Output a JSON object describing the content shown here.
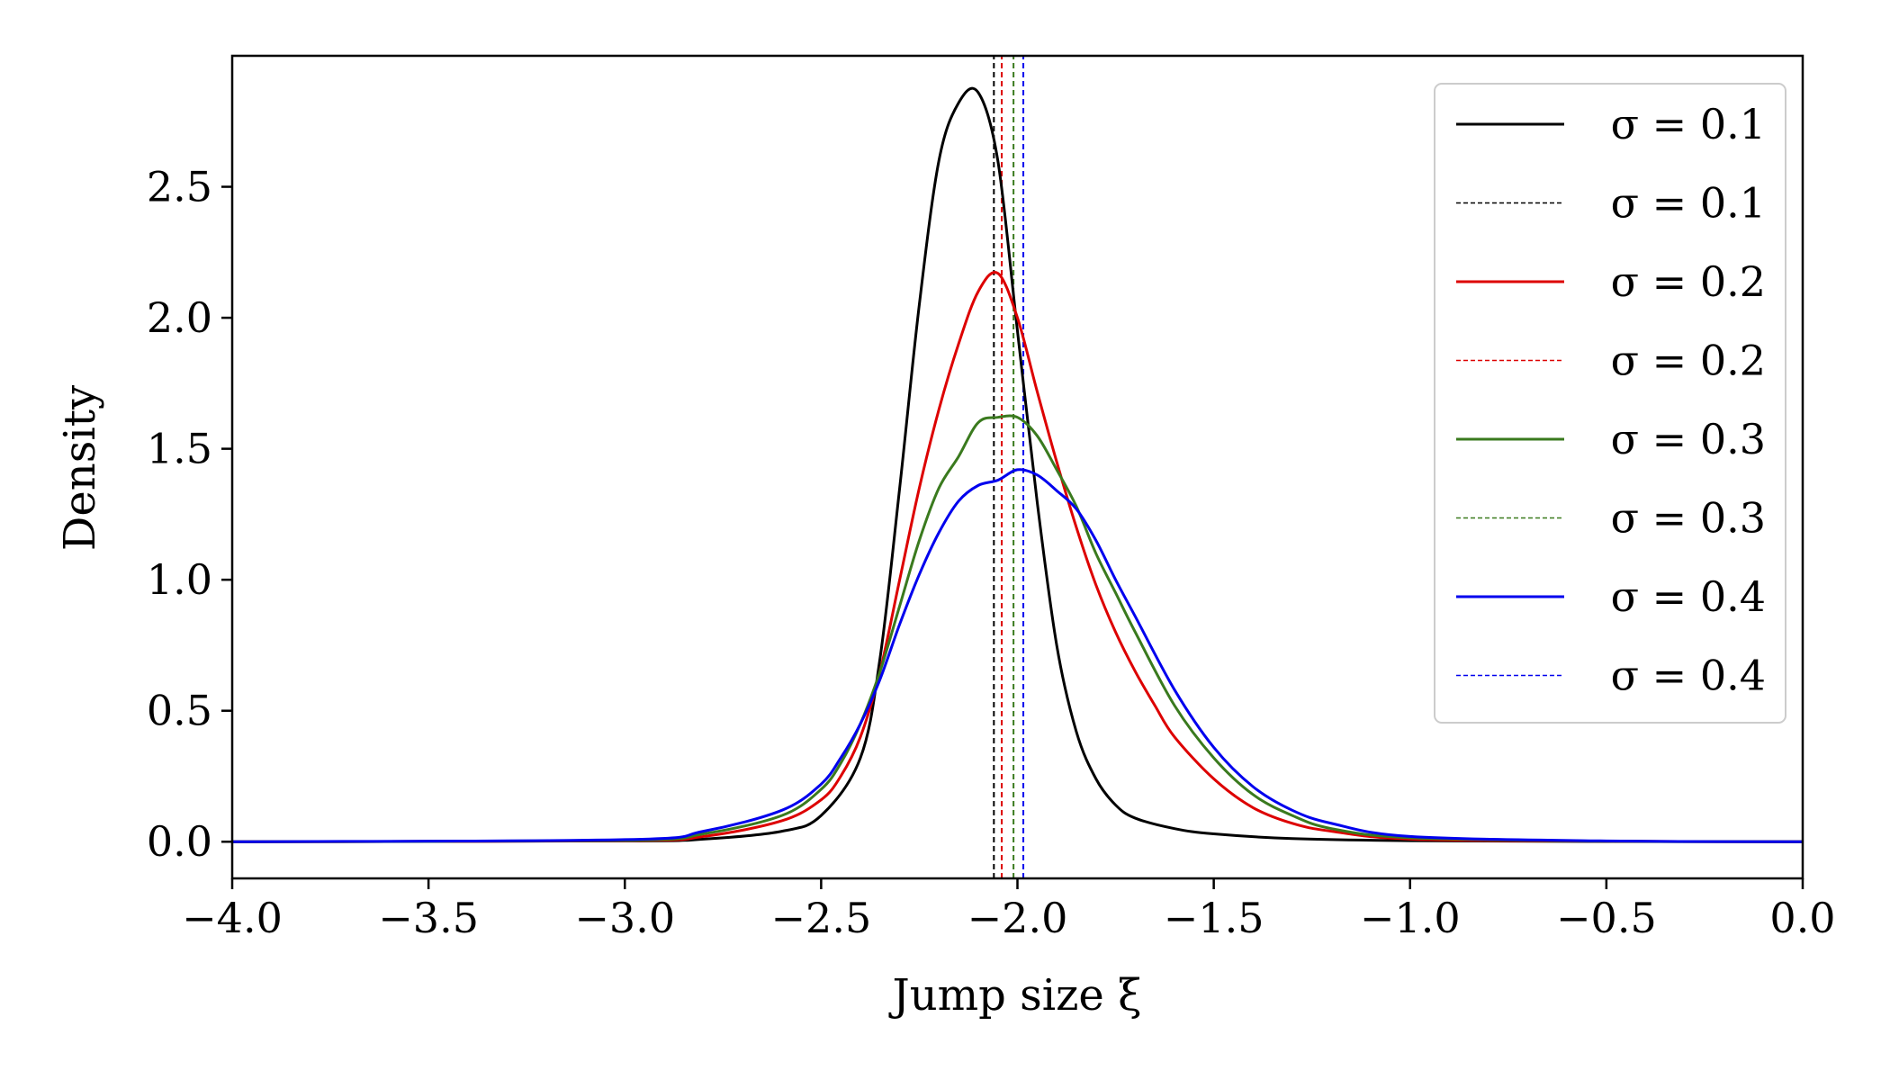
{
  "chart_data": {
    "type": "line",
    "title": "",
    "xlabel": "Jump size ξ",
    "ylabel": "Density",
    "xlim": [
      -4.0,
      0.0
    ],
    "ylim": [
      -0.14,
      3.0
    ],
    "xticks": [
      -4.0,
      -3.5,
      -3.0,
      -2.5,
      -2.0,
      -1.5,
      -1.0,
      -0.5,
      0.0
    ],
    "xtick_labels": [
      "−4.0",
      "−3.5",
      "−3.0",
      "−2.5",
      "−2.0",
      "−1.5",
      "−1.0",
      "−0.5",
      "0.0"
    ],
    "yticks": [
      0.0,
      0.5,
      1.0,
      1.5,
      2.0,
      2.5
    ],
    "ytick_labels": [
      "0.0",
      "0.5",
      "1.0",
      "1.5",
      "2.0",
      "2.5"
    ],
    "grid": false,
    "legend_position": "top-right",
    "series": [
      {
        "name": "σ = 0.1",
        "style": "solid",
        "color": "#000000",
        "x": [
          -4.0,
          -3.0,
          -2.8,
          -2.6,
          -2.5,
          -2.4,
          -2.35,
          -2.3,
          -2.25,
          -2.2,
          -2.15,
          -2.1,
          -2.05,
          -2.0,
          -1.95,
          -1.9,
          -1.85,
          -1.8,
          -1.75,
          -1.7,
          -1.6,
          -1.5,
          -1.3,
          -1.0,
          -0.5,
          0.0
        ],
        "y": [
          0.0,
          0.003,
          0.01,
          0.04,
          0.1,
          0.32,
          0.7,
          1.35,
          2.05,
          2.6,
          2.82,
          2.86,
          2.6,
          1.95,
          1.3,
          0.75,
          0.42,
          0.24,
          0.14,
          0.09,
          0.05,
          0.03,
          0.012,
          0.004,
          0.001,
          0.0
        ]
      },
      {
        "name": "σ = 0.1",
        "style": "dashed",
        "color": "#000000",
        "x": [
          -2.06,
          -2.06
        ],
        "y": [
          -0.14,
          3.0
        ]
      },
      {
        "name": "σ = 0.2",
        "style": "solid",
        "color": "#dd0000",
        "x": [
          -4.0,
          -3.0,
          -2.8,
          -2.6,
          -2.5,
          -2.45,
          -2.4,
          -2.35,
          -2.3,
          -2.25,
          -2.2,
          -2.15,
          -2.1,
          -2.05,
          -2.0,
          -1.95,
          -1.9,
          -1.85,
          -1.8,
          -1.75,
          -1.7,
          -1.65,
          -1.6,
          -1.5,
          -1.4,
          -1.3,
          -1.2,
          -1.0,
          -0.5,
          0.0
        ],
        "y": [
          0.0,
          0.004,
          0.02,
          0.08,
          0.16,
          0.25,
          0.4,
          0.65,
          1.0,
          1.35,
          1.65,
          1.9,
          2.1,
          2.17,
          2.0,
          1.72,
          1.45,
          1.2,
          0.98,
          0.8,
          0.65,
          0.52,
          0.4,
          0.24,
          0.13,
          0.07,
          0.04,
          0.01,
          0.002,
          0.0
        ]
      },
      {
        "name": "σ = 0.2",
        "style": "dashed",
        "color": "#dd0000",
        "x": [
          -2.04,
          -2.04
        ],
        "y": [
          -0.14,
          3.0
        ]
      },
      {
        "name": "σ = 0.3",
        "style": "solid",
        "color": "#3a7a1e",
        "x": [
          -4.0,
          -3.0,
          -2.8,
          -2.6,
          -2.5,
          -2.45,
          -2.4,
          -2.35,
          -2.3,
          -2.25,
          -2.2,
          -2.15,
          -2.1,
          -2.05,
          -2.0,
          -1.95,
          -1.9,
          -1.85,
          -1.8,
          -1.75,
          -1.7,
          -1.6,
          -1.5,
          -1.4,
          -1.3,
          -1.2,
          -1.0,
          -0.5,
          0.0
        ],
        "y": [
          0.0,
          0.005,
          0.03,
          0.1,
          0.2,
          0.3,
          0.45,
          0.65,
          0.9,
          1.15,
          1.35,
          1.47,
          1.6,
          1.62,
          1.62,
          1.55,
          1.42,
          1.28,
          1.1,
          0.95,
          0.8,
          0.52,
          0.32,
          0.18,
          0.1,
          0.05,
          0.015,
          0.002,
          0.0
        ]
      },
      {
        "name": "σ = 0.3",
        "style": "dashed",
        "color": "#3a7a1e",
        "x": [
          -2.01,
          -2.01
        ],
        "y": [
          -0.14,
          3.0
        ]
      },
      {
        "name": "σ = 0.4",
        "style": "solid",
        "color": "#0000ee",
        "x": [
          -4.0,
          -3.0,
          -2.8,
          -2.6,
          -2.5,
          -2.45,
          -2.4,
          -2.35,
          -2.3,
          -2.25,
          -2.2,
          -2.15,
          -2.1,
          -2.05,
          -2.0,
          -1.95,
          -1.9,
          -1.85,
          -1.8,
          -1.75,
          -1.7,
          -1.6,
          -1.5,
          -1.4,
          -1.3,
          -1.2,
          -1.0,
          -0.5,
          0.0
        ],
        "y": [
          0.0,
          0.008,
          0.04,
          0.12,
          0.22,
          0.32,
          0.45,
          0.62,
          0.83,
          1.02,
          1.18,
          1.3,
          1.36,
          1.38,
          1.42,
          1.4,
          1.34,
          1.27,
          1.15,
          1.0,
          0.86,
          0.58,
          0.36,
          0.21,
          0.12,
          0.07,
          0.02,
          0.003,
          0.0
        ]
      },
      {
        "name": "σ = 0.4",
        "style": "dashed",
        "color": "#0000ee",
        "x": [
          -1.985,
          -1.985
        ],
        "y": [
          -0.14,
          3.0
        ]
      }
    ]
  }
}
